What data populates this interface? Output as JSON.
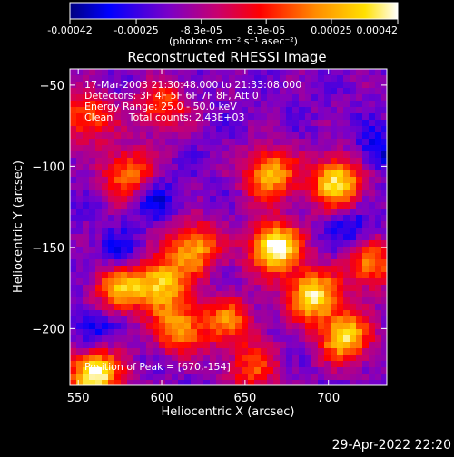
{
  "chart_data": {
    "type": "heatmap",
    "title": "Reconstructed RHESSI Image",
    "xlabel": "Heliocentric X (arcsec)",
    "ylabel": "Heliocentric Y (arcsec)",
    "xlim": [
      545,
      735
    ],
    "ylim": [
      -235,
      -40
    ],
    "x_ticks": [
      550,
      600,
      650,
      700
    ],
    "y_ticks": [
      -50,
      -100,
      -150,
      -200
    ],
    "colorbar": {
      "tick_labels": [
        "-0.00042",
        "-0.00025",
        "-8.3e-05",
        "8.3e-05",
        "0.00025",
        "0.00042"
      ],
      "tick_values": [
        -0.00042,
        -0.00025,
        -8.3e-05,
        8.3e-05,
        0.00025,
        0.00042
      ],
      "range": [
        -0.00042,
        0.00042
      ],
      "units_label": "(photons cm⁻² s⁻¹ asec⁻²)",
      "colormap": "blue-purple-red-orange-yellow-white"
    },
    "annotations": [
      "17-Mar-2003 21:30:48.000 to 21:33:08.000",
      "Detectors: 3F 4F 5F 6F 7F 8F, Att 0",
      "Energy Range: 25.0 - 50.0 keV",
      "Clean     Total counts: 2.43E+03"
    ],
    "peak_label": "Position of Peak = [670,-154]",
    "hot_spots": [
      {
        "x": 668,
        "y": -150,
        "intensity": 1.0
      },
      {
        "x": 690,
        "y": -180,
        "intensity": 0.85
      },
      {
        "x": 710,
        "y": -205,
        "intensity": 0.8
      },
      {
        "x": 705,
        "y": -110,
        "intensity": 0.85
      },
      {
        "x": 665,
        "y": -105,
        "intensity": 0.75
      },
      {
        "x": 620,
        "y": -150,
        "intensity": 0.7
      },
      {
        "x": 600,
        "y": -172,
        "intensity": 0.75
      },
      {
        "x": 575,
        "y": -175,
        "intensity": 0.7
      },
      {
        "x": 610,
        "y": -200,
        "intensity": 0.65
      },
      {
        "x": 560,
        "y": -228,
        "intensity": 0.95
      },
      {
        "x": 580,
        "y": -105,
        "intensity": 0.6
      },
      {
        "x": 600,
        "y": -63,
        "intensity": 0.5
      },
      {
        "x": 555,
        "y": -70,
        "intensity": 0.55
      },
      {
        "x": 640,
        "y": -195,
        "intensity": 0.55
      },
      {
        "x": 725,
        "y": -160,
        "intensity": 0.6
      },
      {
        "x": 655,
        "y": -225,
        "intensity": 0.45
      }
    ],
    "cold_spots": [
      {
        "x": 575,
        "y": -155
      },
      {
        "x": 595,
        "y": -120
      },
      {
        "x": 560,
        "y": -200
      },
      {
        "x": 715,
        "y": -140
      },
      {
        "x": 730,
        "y": -90
      }
    ]
  },
  "footer": {
    "timestamp": "29-Apr-2022 22:20"
  }
}
